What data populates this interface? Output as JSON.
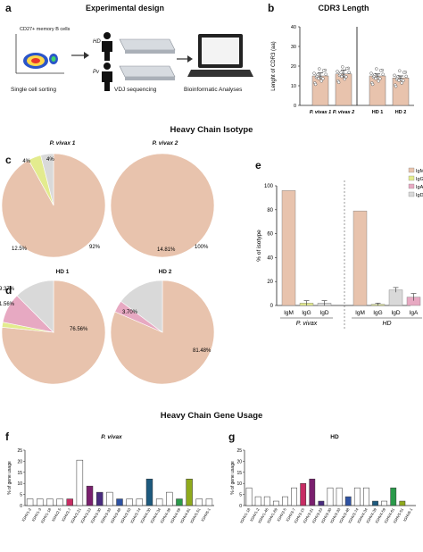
{
  "panel_letters": [
    "a",
    "b",
    "c",
    "d",
    "e",
    "f",
    "g"
  ],
  "panel_a": {
    "title": "Experimental design",
    "facs_label": "CD27+ memory B cells",
    "step1": "Single cell sorting",
    "step2": "VDJ sequencing",
    "step3": "Bioinformatic Analyses",
    "donor_hd": "HD",
    "donor_pv": "Pv"
  },
  "section_titles": {
    "isotype": "Heavy Chain Isotype",
    "gene_usage": "Heavy Chain Gene Usage"
  },
  "colors": {
    "IgM": "#e8c3ad",
    "IgG": "#e3eb8e",
    "IgA": "#e7a9c2",
    "IgD": "#d9d9d9",
    "bar_b": "#e8c3ad"
  },
  "chart_data": [
    {
      "id": "b",
      "type": "bar",
      "title": "CDR3 Length",
      "ylabel": "Lenght of CDR3 (aa)",
      "categories": [
        "P. vivax 1",
        "P. vivax 2",
        "HD 1",
        "HD 2"
      ],
      "values": [
        15,
        16,
        15,
        14
      ],
      "errors": [
        1.5,
        2,
        1,
        1
      ],
      "yticks": [
        0,
        10,
        20,
        30,
        40
      ],
      "ylim": [
        0,
        40
      ]
    },
    {
      "id": "c1",
      "type": "pie",
      "title": "P. vivax 1",
      "slices": [
        {
          "name": "IgM",
          "value": 92,
          "label": "92%"
        },
        {
          "name": "IgG",
          "value": 4,
          "label": "4%"
        },
        {
          "name": "IgD",
          "value": 4,
          "label": "4%"
        }
      ]
    },
    {
      "id": "c2",
      "type": "pie",
      "title": "P. vivax 2",
      "slices": [
        {
          "name": "IgM",
          "value": 100,
          "label": "100%"
        }
      ]
    },
    {
      "id": "d1",
      "type": "pie",
      "title": "HD 1",
      "slices": [
        {
          "name": "IgM",
          "value": 76.56,
          "label": "76.56%"
        },
        {
          "name": "IgG",
          "value": 1.56,
          "label": "1.56%"
        },
        {
          "name": "IgA",
          "value": 9.37,
          "label": "9.37%"
        },
        {
          "name": "IgD",
          "value": 12.5,
          "label": "12.5%"
        }
      ]
    },
    {
      "id": "d2",
      "type": "pie",
      "title": "HD 2",
      "slices": [
        {
          "name": "IgM",
          "value": 81.48,
          "label": "81.48%"
        },
        {
          "name": "IgA",
          "value": 3.7,
          "label": "3.70%"
        },
        {
          "name": "IgD",
          "value": 14.81,
          "label": "14.81%"
        }
      ]
    },
    {
      "id": "e",
      "type": "bar",
      "ylabel": "% of isotype",
      "groups": [
        {
          "name": "P. vivax",
          "categories": [
            "IgM",
            "IgG",
            "IgD"
          ],
          "values": [
            96,
            2,
            2
          ],
          "errors": [
            0,
            2,
            2
          ]
        },
        {
          "name": "HD",
          "categories": [
            "IgM",
            "IgG",
            "IgD",
            "IgA"
          ],
          "values": [
            79,
            1,
            13,
            7
          ],
          "errors": [
            0,
            1,
            2,
            3
          ]
        }
      ],
      "legend": [
        "IgM",
        "IgG",
        "IgA",
        "IgD"
      ],
      "legend_position": "top-right",
      "yticks": [
        0,
        20,
        40,
        60,
        80,
        100
      ],
      "ylim": [
        0,
        100
      ]
    },
    {
      "id": "f",
      "type": "bar",
      "title": "P. vivax",
      "ylabel": "% of gene usage",
      "yticks": [
        0,
        5,
        10,
        15,
        20,
        25
      ],
      "ylim": [
        0,
        25
      ],
      "categories": [
        "IGHV1-2",
        "IGHV1-3",
        "IGHV1-18",
        "IGHV2-5",
        "IGHV3-7",
        "IGHV3-21",
        "IGHV3-23",
        "IGHV3-30",
        "IGHV3-33",
        "IGHV3-48",
        "IGHV3-53",
        "IGHV3-74",
        "IGHV4-30",
        "IGHV4-34",
        "IGHV4-39",
        "IGHV4-59",
        "IGHV4-61",
        "IGHV5-51",
        "IGHV6-1"
      ],
      "values": [
        3,
        3,
        3,
        3,
        3,
        20.5,
        8.8,
        6,
        6,
        3,
        3,
        3,
        12,
        3,
        6,
        3,
        12,
        3,
        3
      ],
      "bar_colors": [
        "#ffffff",
        "#ffffff",
        "#ffffff",
        "#ffffff",
        "#c72d64",
        "#ffffff",
        "#7a1f6e",
        "#4a2c7f",
        "#ffffff",
        "#2e52a3",
        "#ffffff",
        "#ffffff",
        "#1d5a7e",
        "#ffffff",
        "#ffffff",
        "#2a9a4a",
        "#8faa1c",
        "#ffffff",
        "#ffffff"
      ]
    },
    {
      "id": "g",
      "type": "bar",
      "title": "HD",
      "ylabel": "% of gene usage",
      "yticks": [
        0,
        5,
        10,
        15,
        20,
        25
      ],
      "ylim": [
        0,
        25
      ],
      "categories": [
        "IGHV1-18",
        "IGHV1-2",
        "IGHV1-46",
        "IGHV1-69",
        "IGHV2-5",
        "IGHV3-7",
        "IGHV3-15",
        "IGHV3-21",
        "IGHV3-23",
        "IGHV3-30",
        "IGHV3-33",
        "IGHV3-48",
        "IGHV3-74",
        "IGHV4-34",
        "IGHV4-39",
        "IGHV4-59",
        "IGHV4-61",
        "IGHV5-51",
        "IGHV6-1"
      ],
      "values": [
        8,
        4,
        4,
        2,
        4,
        8,
        10,
        12,
        2,
        8,
        8,
        4,
        8,
        8,
        2,
        2,
        8,
        2,
        0
      ],
      "bar_colors": [
        "#ffffff",
        "#ffffff",
        "#ffffff",
        "#ffffff",
        "#ffffff",
        "#ffffff",
        "#c72d64",
        "#7a1f6e",
        "#4a2c7f",
        "#ffffff",
        "#ffffff",
        "#2e52a3",
        "#ffffff",
        "#ffffff",
        "#1d5a7e",
        "#ffffff",
        "#2a9a4a",
        "#8faa1c",
        "#ffffff"
      ]
    }
  ]
}
